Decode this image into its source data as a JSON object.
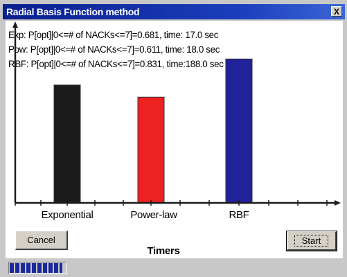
{
  "window": {
    "title": "Radial Basis Function method",
    "close_glyph": "X"
  },
  "legend": [
    "Exp: P[opt]|0<=# of NACKs<=7]=0.681, time: 17.0 sec",
    "Pow: P[opt]|0<=# of NACKs<=7]=0.611, time: 18.0 sec",
    "RBF: P[opt]|0<=# of NACKs<=7]=0.831, time:188.0 sec"
  ],
  "buttons": {
    "cancel": "Cancel",
    "start": "Start"
  },
  "progress": {
    "value": 0.95
  },
  "colors": {
    "title_bar": "#1b3fbd",
    "bar_exponential": "#1a1a1a",
    "bar_power_law": "#ee2222",
    "bar_rbf": "#22229a",
    "axis": "#1a1a1a"
  },
  "chart_data": {
    "type": "bar",
    "categories": [
      "Exponential",
      "Power-law",
      "RBF"
    ],
    "values": [
      0.681,
      0.611,
      0.831
    ],
    "xlabel": "Timers",
    "ylabel": "",
    "ylim": [
      0,
      1.0
    ]
  }
}
